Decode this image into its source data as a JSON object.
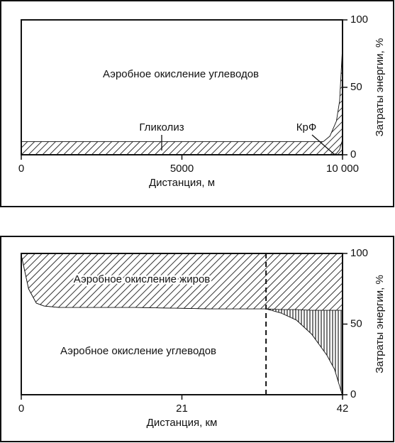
{
  "chart_data": [
    {
      "type": "area",
      "stacked": true,
      "x": [
        0,
        1000,
        2000,
        3000,
        4000,
        5000,
        6000,
        7000,
        8000,
        9000,
        9400,
        9600,
        9800,
        9900,
        10000
      ],
      "series": [
        {
          "name": "КрФ",
          "fill": "hatch-diagonal",
          "values": [
            0,
            0,
            0,
            0,
            0,
            0,
            0,
            0,
            0,
            0,
            0,
            0,
            1,
            4,
            12
          ]
        },
        {
          "name": "Гликолиз",
          "fill": "hatch-diagonal",
          "values": [
            10,
            10,
            10,
            10,
            10,
            10,
            10,
            10,
            10,
            10,
            10,
            14,
            24,
            36,
            73
          ]
        },
        {
          "name": "Аэробное окисление углеводов",
          "fill": "white",
          "values": [
            90,
            90,
            90,
            90,
            90,
            90,
            90,
            90,
            90,
            90,
            90,
            86,
            75,
            60,
            15
          ]
        }
      ],
      "xlim": [
        0,
        10000
      ],
      "xticks": [
        0,
        5000,
        {
          "value": 10000,
          "label": "10 000"
        }
      ],
      "ylim": [
        0,
        100
      ],
      "yticks": [
        0,
        50,
        100
      ],
      "xlabel": "Дистанция, м",
      "ylabel": "Затраты энергии, %"
    },
    {
      "type": "area",
      "stacked": true,
      "x": [
        0,
        1,
        2,
        3,
        5,
        10,
        15,
        20,
        25,
        30,
        32,
        34,
        36,
        38,
        40,
        41,
        42
      ],
      "series": [
        {
          "name": "Аэробное окисление углеводов",
          "fill": "white",
          "values": [
            100,
            75,
            65,
            63,
            62,
            62,
            62,
            61.5,
            61,
            61,
            61,
            58,
            53,
            43,
            28,
            18,
            0
          ]
        },
        {
          "fill": "hatch-vertical",
          "values": [
            0,
            0,
            0,
            0,
            0,
            0,
            0,
            0,
            0,
            0,
            0,
            2.5,
            7.5,
            17,
            32,
            42,
            60
          ]
        },
        {
          "name": "Аэробное окисление жиров",
          "fill": "hatch-diagonal",
          "values": [
            0,
            25,
            35,
            37,
            38,
            38,
            38,
            38.5,
            39,
            39,
            39,
            39.5,
            39.5,
            40,
            40,
            40,
            40
          ]
        }
      ],
      "vline": 32,
      "xlim": [
        0,
        42
      ],
      "xticks": [
        0,
        21,
        42
      ],
      "ylim": [
        0,
        100
      ],
      "yticks": [
        0,
        50,
        100
      ],
      "xlabel": "Дистанция, км",
      "ylabel": "Затраты энергии, %"
    }
  ]
}
